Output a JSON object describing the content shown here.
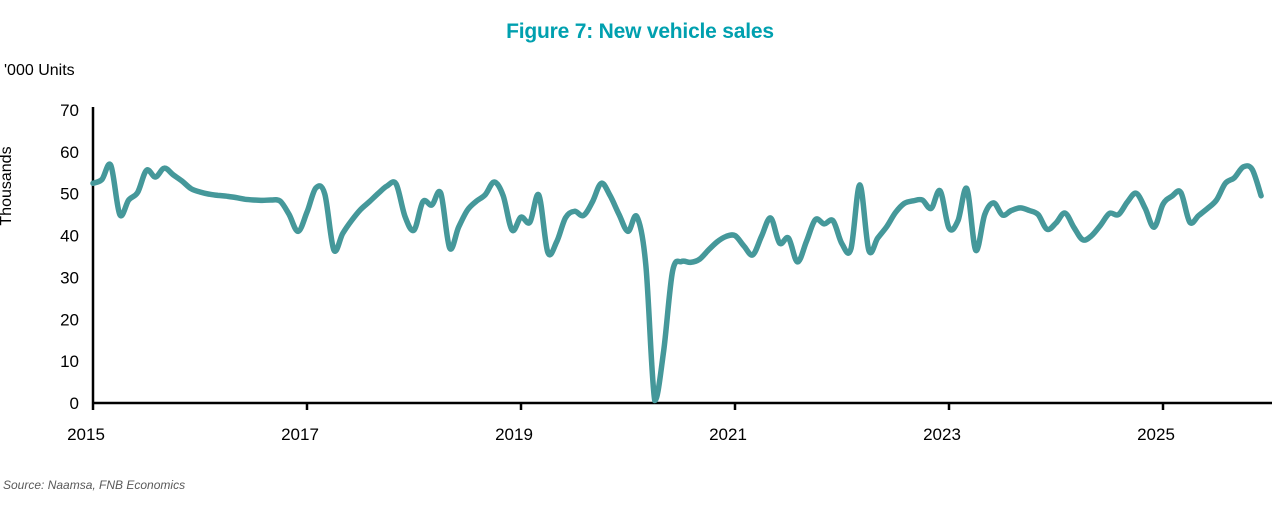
{
  "figure": {
    "title": "Figure 7: New vehicle sales",
    "units_label": "'000 Units",
    "y_axis_title": "Thousands",
    "source": "Source: Naamsa, FNB Economics"
  },
  "colors": {
    "title": "#00A0AF",
    "line": "#45989A",
    "axis": "#000000",
    "tick_text": "#000000",
    "source_text": "#595959"
  },
  "chart_data": {
    "type": "line",
    "title": "Figure 7: New vehicle sales",
    "xlabel": "",
    "ylabel": "Thousands ('000 Units)",
    "ylim": [
      0,
      70
    ],
    "y_ticks": [
      0,
      10,
      20,
      30,
      40,
      50,
      60,
      70
    ],
    "x_tick_years": [
      2015,
      2017,
      2019,
      2021,
      2023,
      2025
    ],
    "x_range_years": [
      2015,
      2026
    ],
    "grid": false,
    "legend_position": "none",
    "series": [
      {
        "name": "New vehicle sales, monthly ('000 units)",
        "frequency": "monthly",
        "start": "2015-01",
        "end": "2025-12",
        "color": "#45989A",
        "values": [
          52.5,
          53.4,
          56.8,
          45.0,
          48.5,
          50.3,
          55.6,
          54.0,
          56.1,
          54.5,
          53.0,
          51.2,
          50.4,
          49.9,
          49.6,
          49.4,
          49.1,
          48.7,
          48.5,
          48.4,
          48.5,
          48.2,
          45.0,
          41.0,
          45.6,
          51.4,
          49.9,
          36.6,
          40.5,
          43.6,
          46.2,
          48.1,
          50.1,
          51.9,
          52.3,
          44.5,
          41.3,
          48.1,
          47.3,
          50.1,
          37.0,
          42.0,
          46.1,
          48.2,
          49.8,
          52.8,
          49.5,
          41.3,
          44.4,
          43.2,
          49.7,
          36.0,
          38.5,
          44.3,
          45.8,
          44.8,
          48.0,
          52.5,
          49.5,
          45.0,
          41.0,
          44.5,
          33.0,
          0.6,
          12.5,
          31.5,
          33.8,
          33.6,
          34.3,
          36.5,
          38.5,
          39.8,
          40.0,
          37.5,
          35.4,
          40.0,
          44.2,
          38.2,
          39.4,
          33.7,
          38.5,
          43.8,
          42.8,
          43.5,
          38.0,
          36.8,
          52.1,
          36.5,
          39.4,
          42.1,
          45.5,
          47.7,
          48.3,
          48.5,
          46.5,
          50.7,
          41.8,
          43.5,
          51.2,
          36.5,
          45.0,
          47.8,
          44.9,
          46.0,
          46.6,
          46.0,
          45.0,
          41.5,
          43.0,
          45.4,
          42.0,
          39.0,
          40.0,
          42.5,
          45.3,
          45.0,
          48.0,
          50.1,
          46.5,
          42.0,
          47.5,
          49.4,
          50.3,
          43.2,
          44.8,
          46.5,
          48.5,
          52.5,
          53.8,
          56.4,
          55.8,
          49.5
        ]
      }
    ]
  }
}
